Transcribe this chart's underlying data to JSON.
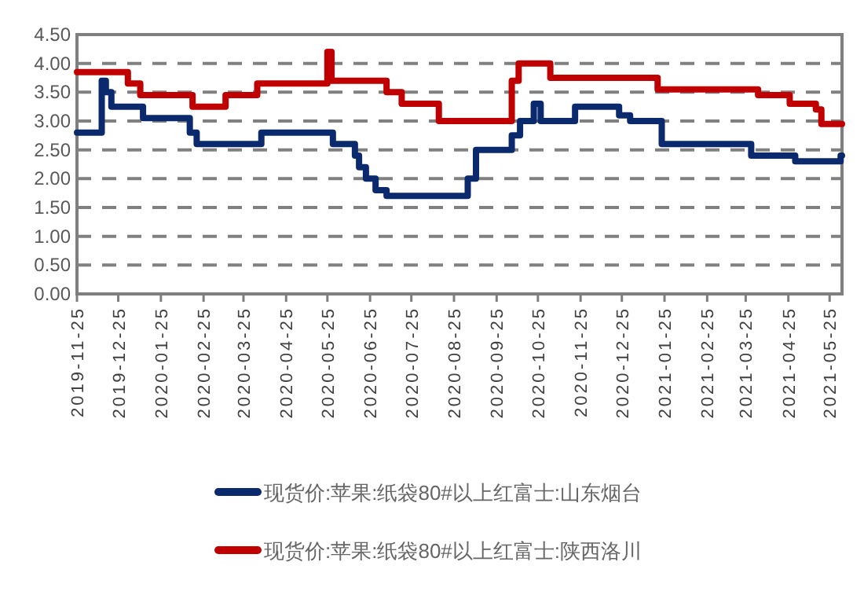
{
  "chart_data": {
    "type": "step",
    "xlim": [
      "2019-11-25",
      "2021-06-03"
    ],
    "xticks": [
      "2019-11-25",
      "2019-12-25",
      "2020-01-25",
      "2020-02-25",
      "2020-03-25",
      "2020-04-25",
      "2020-05-25",
      "2020-06-25",
      "2020-07-25",
      "2020-08-25",
      "2020-09-25",
      "2020-10-25",
      "2020-11-25",
      "2020-12-25",
      "2021-01-25",
      "2021-02-25",
      "2021-03-25",
      "2021-04-25",
      "2021-05-25"
    ],
    "ylim": [
      0,
      4.5
    ],
    "yticks": [
      {
        "value": 0,
        "label": "0.00"
      },
      {
        "value": 0.5,
        "label": "0.50"
      },
      {
        "value": 1,
        "label": "1.00"
      },
      {
        "value": 1.5,
        "label": "1.50"
      },
      {
        "value": 2,
        "label": "2.00"
      },
      {
        "value": 2.5,
        "label": "2.50"
      },
      {
        "value": 3,
        "label": "3.00"
      },
      {
        "value": 3.5,
        "label": "3.50"
      },
      {
        "value": 4,
        "label": "4.00"
      },
      {
        "value": 4.5,
        "label": "4.50"
      }
    ],
    "grid": "y",
    "legend": "bottom",
    "series": [
      {
        "name": "现货价:苹果:纸袋80#以上红富士:山东烟台",
        "color": "#0b2a6e",
        "x": [
          "2019-11-25",
          "2019-12-13",
          "2019-12-16",
          "2019-12-20",
          "2020-01-12",
          "2020-02-15",
          "2020-02-20",
          "2020-04-07",
          "2020-05-29",
          "2020-06-14",
          "2020-06-17",
          "2020-06-22",
          "2020-06-29",
          "2020-07-07",
          "2020-09-04",
          "2020-09-10",
          "2020-10-06",
          "2020-10-12",
          "2020-10-22",
          "2020-10-27",
          "2020-11-21",
          "2020-12-23",
          "2020-12-31",
          "2021-01-23",
          "2021-03-29",
          "2021-04-30",
          "2021-06-02",
          "2021-06-03"
        ],
        "values": [
          2.8,
          3.7,
          3.5,
          3.25,
          3.05,
          2.8,
          2.6,
          2.8,
          2.6,
          2.4,
          2.2,
          2.0,
          1.8,
          1.7,
          2.0,
          2.5,
          2.75,
          3.0,
          3.3,
          3.0,
          3.25,
          3.1,
          3.0,
          2.6,
          2.4,
          2.3,
          2.4,
          2.4
        ]
      },
      {
        "name": "现货价:苹果:纸袋80#以上红富士:陕西洛川",
        "color": "#c00000",
        "x": [
          "2019-11-25",
          "2020-01-01",
          "2020-01-10",
          "2020-02-17",
          "2020-03-12",
          "2020-04-04",
          "2020-05-25",
          "2020-05-28",
          "2020-07-07",
          "2020-07-18",
          "2020-08-14",
          "2020-10-06",
          "2020-10-11",
          "2020-11-03",
          "2021-01-20",
          "2021-04-03",
          "2021-04-26",
          "2021-05-15",
          "2021-05-19",
          "2021-06-03"
        ],
        "values": [
          3.85,
          3.65,
          3.45,
          3.25,
          3.45,
          3.65,
          4.2,
          3.7,
          3.5,
          3.3,
          3.0,
          3.7,
          4.0,
          3.75,
          3.55,
          3.45,
          3.3,
          3.2,
          2.95,
          2.95
        ]
      }
    ]
  }
}
